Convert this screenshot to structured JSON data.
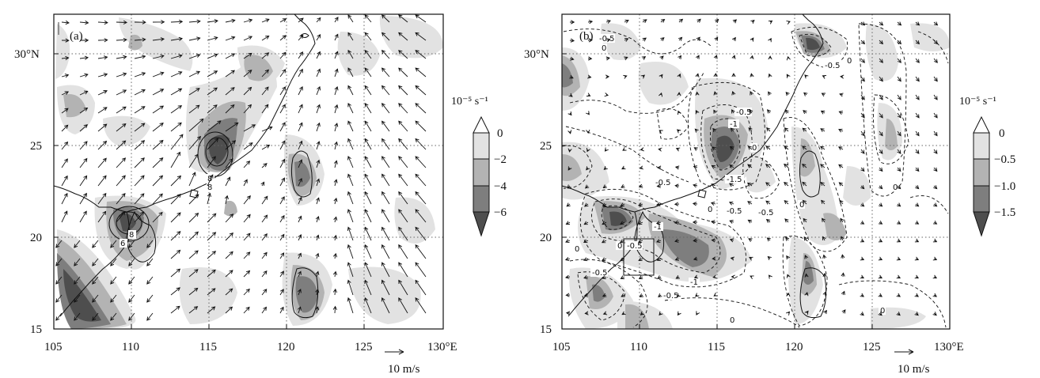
{
  "panels": [
    {
      "label": "(a)",
      "x_ticks": [
        "105",
        "110",
        "115",
        "120",
        "125",
        "130°E"
      ],
      "y_ticks": [
        "30°N",
        "25",
        "20",
        "15"
      ],
      "colorbar": {
        "unit": "10⁻⁵ s⁻¹",
        "labels": [
          "0",
          "−2",
          "−4",
          "−6"
        ],
        "levels": [
          0,
          -2,
          -4,
          -6
        ]
      },
      "contour_labels": [
        "8",
        "8",
        "8",
        "6"
      ],
      "reference_vector": "10 m/s"
    },
    {
      "label": "(b)",
      "x_ticks": [
        "105",
        "110",
        "115",
        "120",
        "125",
        "130°E"
      ],
      "y_ticks": [
        "30°N",
        "25",
        "20",
        "15"
      ],
      "colorbar": {
        "unit": "10⁻⁵ s⁻¹",
        "labels": [
          "0",
          "−0.5",
          "−1.0",
          "−1.5"
        ],
        "levels": [
          0,
          -0.5,
          -1.0,
          -1.5
        ]
      },
      "contour_labels": [
        "-0.5",
        "0",
        "-0.5",
        "0",
        "-0.5",
        "-1",
        "-1.5",
        "0",
        "-0.5",
        "-0.5",
        "-1",
        "-0.5",
        "-0.5",
        "-1",
        "-0.5",
        "0",
        "-0.5",
        "0",
        "0",
        "0",
        "0",
        "0",
        "0"
      ],
      "reference_vector": "10 m/s"
    }
  ],
  "axes": {
    "lon_range": [
      105,
      130
    ],
    "lat_range": [
      15,
      32
    ],
    "gridlines": "dotted",
    "grid_lon": [
      110,
      115,
      120,
      125
    ],
    "grid_lat": [
      20,
      25,
      30
    ]
  },
  "colors": {
    "shade_1": "#e2e2e2",
    "shade_2": "#b3b3b3",
    "shade_3": "#7e7e7e",
    "shade_4": "#4e4e4e",
    "lines": "#111111"
  }
}
